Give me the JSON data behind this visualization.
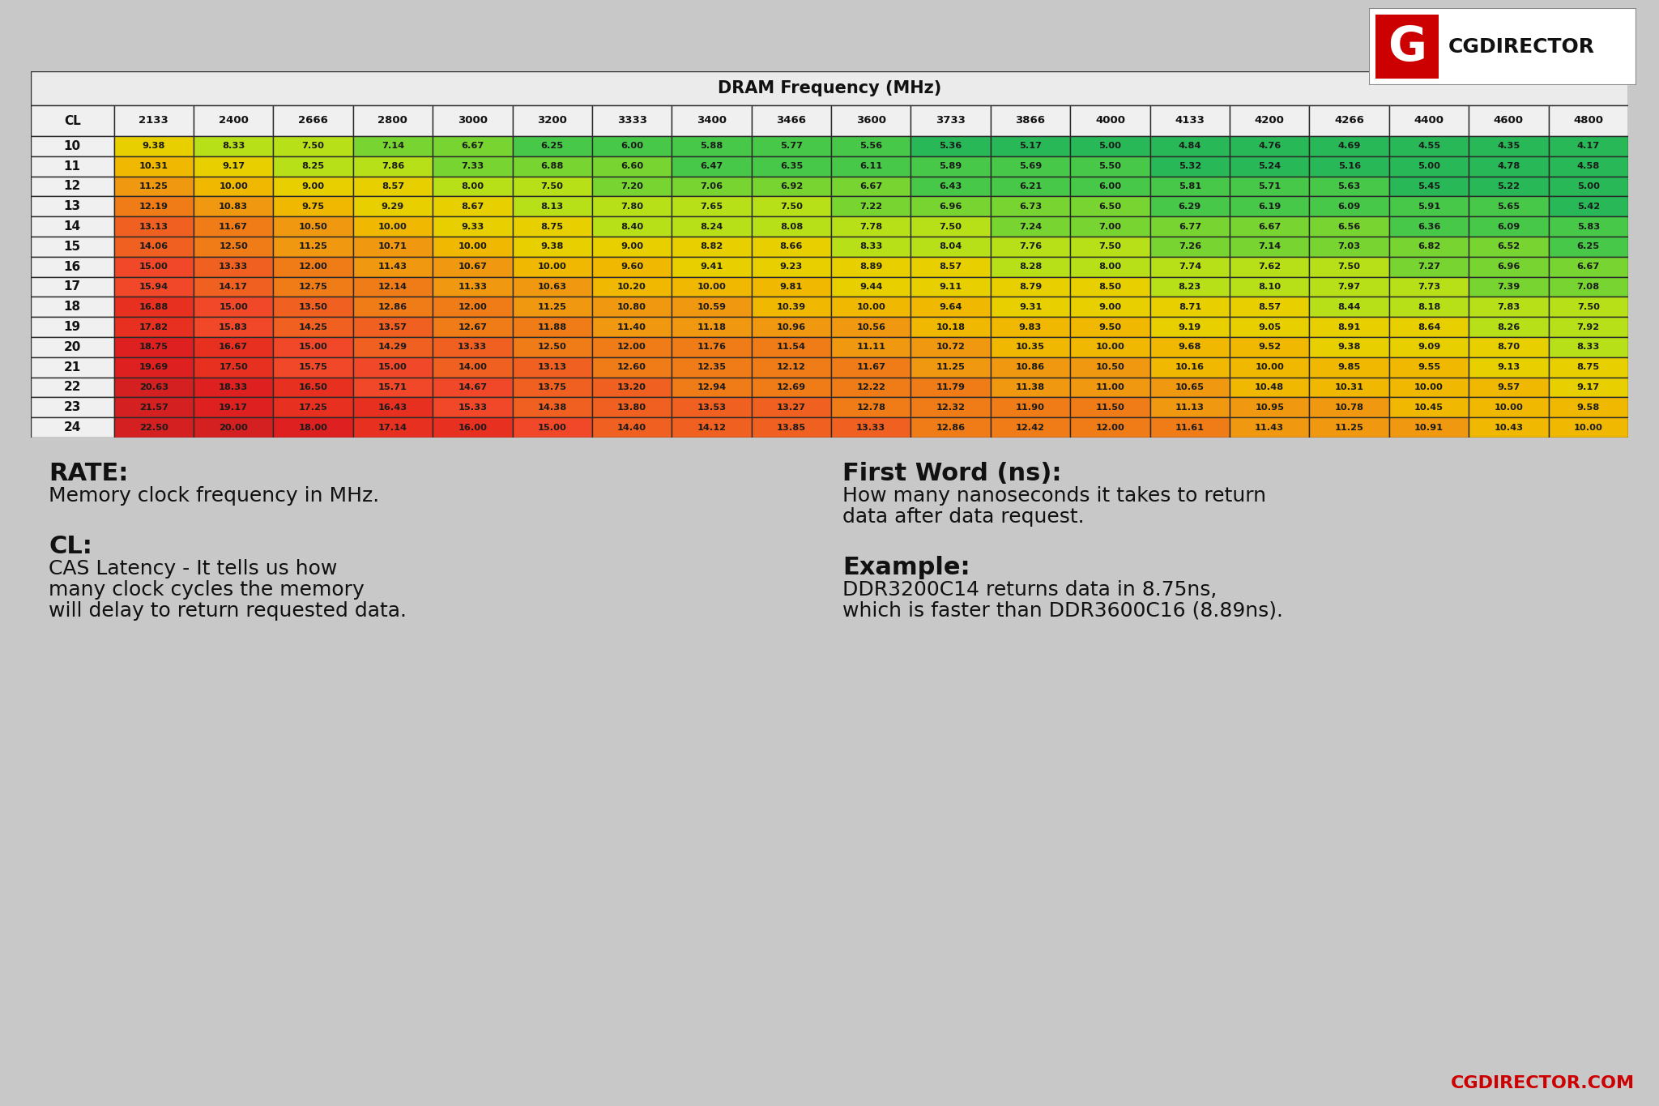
{
  "title": "DRAM Frequency (MHz)",
  "col_header": [
    "CL",
    "2133",
    "2400",
    "2666",
    "2800",
    "3000",
    "3200",
    "3333",
    "3400",
    "3466",
    "3600",
    "3733",
    "3866",
    "4000",
    "4133",
    "4200",
    "4266",
    "4400",
    "4600",
    "4800"
  ],
  "row_labels": [
    "10",
    "11",
    "12",
    "13",
    "14",
    "15",
    "16",
    "17",
    "18",
    "19",
    "20",
    "21",
    "22",
    "23",
    "24"
  ],
  "data": [
    [
      9.38,
      8.33,
      7.5,
      7.14,
      6.67,
      6.25,
      6.0,
      5.88,
      5.77,
      5.56,
      5.36,
      5.17,
      5.0,
      4.84,
      4.76,
      4.69,
      4.55,
      4.35,
      4.17
    ],
    [
      10.31,
      9.17,
      8.25,
      7.86,
      7.33,
      6.88,
      6.6,
      6.47,
      6.35,
      6.11,
      5.89,
      5.69,
      5.5,
      5.32,
      5.24,
      5.16,
      5.0,
      4.78,
      4.58
    ],
    [
      11.25,
      10.0,
      9.0,
      8.57,
      8.0,
      7.5,
      7.2,
      7.06,
      6.92,
      6.67,
      6.43,
      6.21,
      6.0,
      5.81,
      5.71,
      5.63,
      5.45,
      5.22,
      5.0
    ],
    [
      12.19,
      10.83,
      9.75,
      9.29,
      8.67,
      8.13,
      7.8,
      7.65,
      7.5,
      7.22,
      6.96,
      6.73,
      6.5,
      6.29,
      6.19,
      6.09,
      5.91,
      5.65,
      5.42
    ],
    [
      13.13,
      11.67,
      10.5,
      10.0,
      9.33,
      8.75,
      8.4,
      8.24,
      8.08,
      7.78,
      7.5,
      7.24,
      7.0,
      6.77,
      6.67,
      6.56,
      6.36,
      6.09,
      5.83
    ],
    [
      14.06,
      12.5,
      11.25,
      10.71,
      10.0,
      9.38,
      9.0,
      8.82,
      8.66,
      8.33,
      8.04,
      7.76,
      7.5,
      7.26,
      7.14,
      7.03,
      6.82,
      6.52,
      6.25
    ],
    [
      15.0,
      13.33,
      12.0,
      11.43,
      10.67,
      10.0,
      9.6,
      9.41,
      9.23,
      8.89,
      8.57,
      8.28,
      8.0,
      7.74,
      7.62,
      7.5,
      7.27,
      6.96,
      6.67
    ],
    [
      15.94,
      14.17,
      12.75,
      12.14,
      11.33,
      10.63,
      10.2,
      10.0,
      9.81,
      9.44,
      9.11,
      8.79,
      8.5,
      8.23,
      8.1,
      7.97,
      7.73,
      7.39,
      7.08
    ],
    [
      16.88,
      15.0,
      13.5,
      12.86,
      12.0,
      11.25,
      10.8,
      10.59,
      10.39,
      10.0,
      9.64,
      9.31,
      9.0,
      8.71,
      8.57,
      8.44,
      8.18,
      7.83,
      7.5
    ],
    [
      17.82,
      15.83,
      14.25,
      13.57,
      12.67,
      11.88,
      11.4,
      11.18,
      10.96,
      10.56,
      10.18,
      9.83,
      9.5,
      9.19,
      9.05,
      8.91,
      8.64,
      8.26,
      7.92
    ],
    [
      18.75,
      16.67,
      15.0,
      14.29,
      13.33,
      12.5,
      12.0,
      11.76,
      11.54,
      11.11,
      10.72,
      10.35,
      10.0,
      9.68,
      9.52,
      9.38,
      9.09,
      8.7,
      8.33
    ],
    [
      19.69,
      17.5,
      15.75,
      15.0,
      14.0,
      13.13,
      12.6,
      12.35,
      12.12,
      11.67,
      11.25,
      10.86,
      10.5,
      10.16,
      10.0,
      9.85,
      9.55,
      9.13,
      8.75
    ],
    [
      20.63,
      18.33,
      16.5,
      15.71,
      14.67,
      13.75,
      13.2,
      12.94,
      12.69,
      12.22,
      11.79,
      11.38,
      11.0,
      10.65,
      10.48,
      10.31,
      10.0,
      9.57,
      9.17
    ],
    [
      21.57,
      19.17,
      17.25,
      16.43,
      15.33,
      14.38,
      13.8,
      13.53,
      13.27,
      12.78,
      12.32,
      11.9,
      11.5,
      11.13,
      10.95,
      10.78,
      10.45,
      10.0,
      9.58
    ],
    [
      22.5,
      20.0,
      18.0,
      17.14,
      16.0,
      15.0,
      14.4,
      14.12,
      13.85,
      13.33,
      12.86,
      12.42,
      12.0,
      11.61,
      11.43,
      11.25,
      10.91,
      10.43,
      10.0
    ]
  ],
  "bg_color": "#c8c8c8",
  "table_bg": "#e8e8e8",
  "border_color": "#2a2a2a",
  "text_color": "#111111",
  "watermark": "CGDIRECTOR.COM",
  "watermark_color": "#cc0000",
  "logo_red": "#cc0000",
  "logo_text": "CGDIRECTOR"
}
